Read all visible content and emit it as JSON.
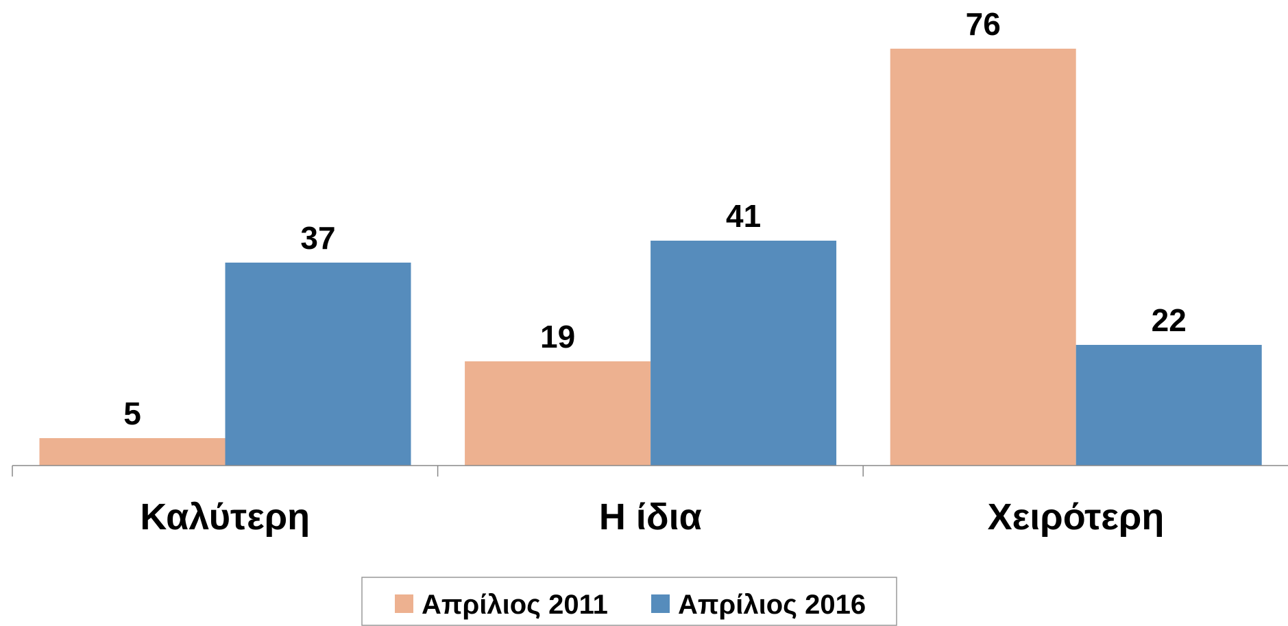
{
  "chart_data": {
    "type": "bar",
    "categories": [
      "Καλύτερη",
      "Η ίδια",
      "Χειρότερη"
    ],
    "series": [
      {
        "name": "Απρίλιος 2011",
        "color": "#edb190",
        "values": [
          5,
          19,
          76
        ]
      },
      {
        "name": "Απρίλιος 2016",
        "color": "#568cbc",
        "values": [
          37,
          41,
          22
        ]
      }
    ],
    "legend": "bottom"
  }
}
